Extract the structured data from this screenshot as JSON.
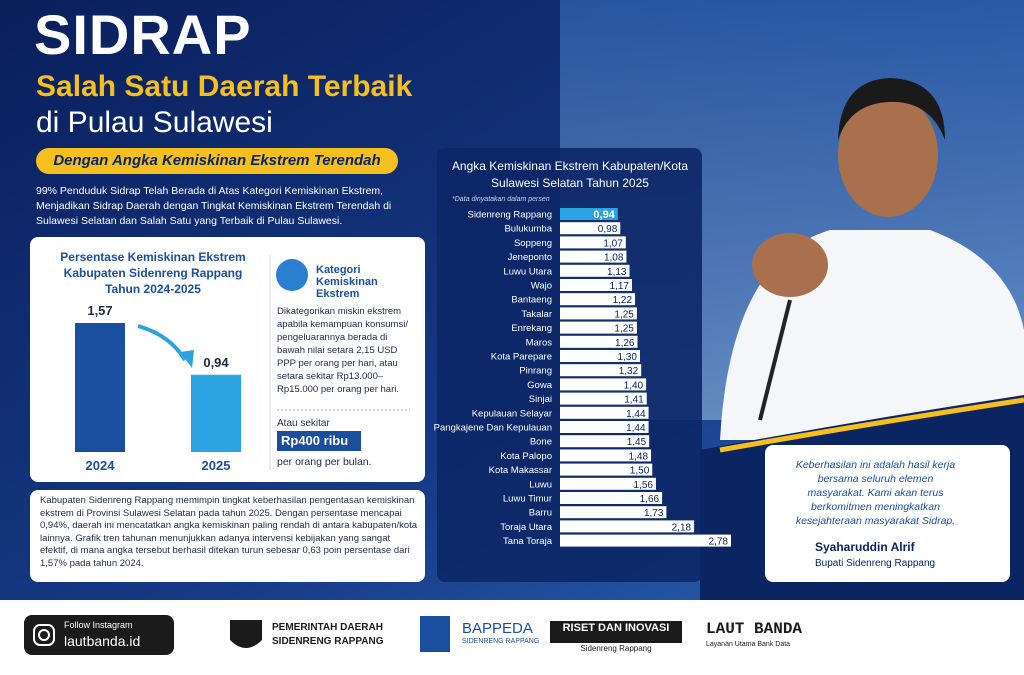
{
  "header": {
    "title": "SIDRAP",
    "subtitle_1": "Salah Satu Daerah Terbaik",
    "subtitle_2": "di Pulau Sulawesi",
    "tagline": "Dengan Angka Kemiskinan Ekstrem Terendah",
    "intro": "99% Penduduk Sidrap Telah Berada di Atas Kategori Kemiskinan Ekstrem, Menjadikan Sidrap Daerah dengan Tingkat Kemiskinan Ekstrem Terendah di Sulawesi Selatan dan Salah Satu yang Terbaik di Pulau Sulawesi."
  },
  "category_box": {
    "heading": "Kategori Kemiskinan Ekstrem",
    "description": "Dikategorikan miskin ekstrem apabila kemampuan konsumsi/ pengeluarannya berada di bawah nilai setara 2,15 USD PPP per orang per hari, atau setara sekitar Rp13.000–Rp15.000 per orang per hari.",
    "approx": "Atau sekitar",
    "amount": "Rp400 ribu",
    "per": "per orang per bulan."
  },
  "summary": "Kabupaten Sidenreng Rappang memimpin tingkat keberhasilan pengentasan kemiskinan ekstrem di Provinsi Sulawesi Selatan pada tahun 2025. Dengan persentase mencapai 0,94%, daerah ini mencatatkan angka kemiskinan paling rendah di antara kabupaten/kota lainnya. Grafik tren tahunan menunjukkan adanya intervensi kebijakan yang sangat efektif, di mana angka tersebut berhasil ditekan turun sebesar 0,63 poin persentase dari 1,57% pada tahun 2024.",
  "quote": {
    "text": "Keberhasilan ini adalah hasil kerja bersama seluruh elemen masyarakat. Kami akan terus berkomitmen meningkatkan kesejahteraan masyarakat Sidrap.",
    "name": "Syaharuddin Alrif",
    "role": "Bupati Sidenreng Rappang"
  },
  "footer": {
    "follow": "Follow Instagram",
    "handle": "lautbanda.id",
    "pemda_1": "PEMERINTAH DAERAH",
    "pemda_2": "SIDENRENG RAPPANG",
    "bappeda": "BAPPEDA",
    "bappeda_sub": "SIDENRENG RAPPANG",
    "riset": "RISET DAN INOVASI",
    "riset_sub": "Sidenreng Rappang",
    "laut": "LAUT BANDA",
    "laut_sub": "Layanan Utama Bank Data"
  },
  "chart_data": [
    {
      "type": "bar",
      "title": "Persentase Kemiskinan Ekstrem Kabupaten Sidenreng Rappang Tahun 2024-2025",
      "categories": [
        "2024",
        "2025"
      ],
      "values": [
        1.57,
        0.94
      ],
      "value_labels": [
        "1,57",
        "0,94"
      ],
      "colors": [
        "#1a4fa0",
        "#2aa3e0"
      ]
    },
    {
      "type": "barh",
      "title": "Angka Kemiskinan Ekstrem Kabupaten/Kota Sulawesi Selatan Tahun 2025",
      "subtitle": "*Data dinyatakan dalam persen",
      "categories": [
        "Sidenreng Rappang",
        "Bulukumba",
        "Soppeng",
        "Jeneponto",
        "Luwu Utara",
        "Wajo",
        "Bantaeng",
        "Takalar",
        "Enrekang",
        "Maros",
        "Kota Parepare",
        "Pinrang",
        "Gowa",
        "Sinjai",
        "Kepulauan Selayar",
        "Pangkajene Dan Kepulauan",
        "Bone",
        "Kota Palopo",
        "Kota Makassar",
        "Luwu",
        "Luwu Timur",
        "Barru",
        "Toraja Utara",
        "Tana Toraja"
      ],
      "values": [
        0.94,
        0.98,
        1.07,
        1.08,
        1.13,
        1.17,
        1.22,
        1.25,
        1.25,
        1.26,
        1.3,
        1.32,
        1.4,
        1.41,
        1.44,
        1.44,
        1.45,
        1.48,
        1.5,
        1.56,
        1.66,
        1.73,
        2.18,
        2.78
      ],
      "value_labels": [
        "0,94",
        "0,98",
        "1,07",
        "1,08",
        "1,13",
        "1,17",
        "1,22",
        "1,25",
        "1,25",
        "1,26",
        "1,30",
        "1,32",
        "1,40",
        "1,41",
        "1,44",
        "1,44",
        "1,45",
        "1,48",
        "1,50",
        "1,56",
        "1,66",
        "1,73",
        "2,18",
        "2,78"
      ],
      "color": "#ffffff",
      "highlight_color": "#2aa3e0"
    }
  ]
}
